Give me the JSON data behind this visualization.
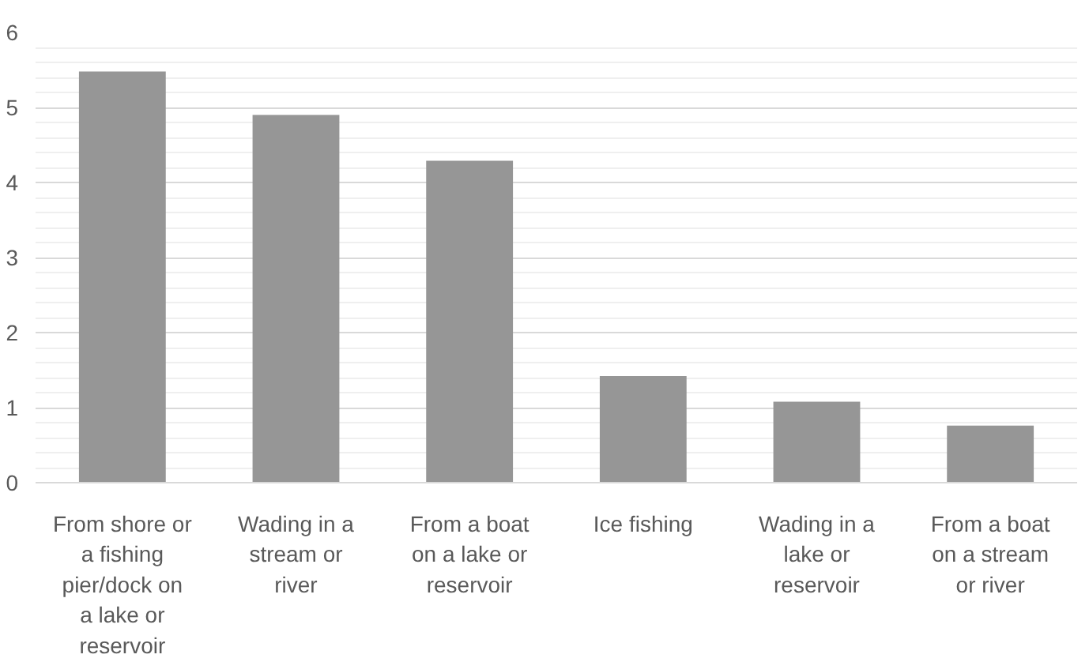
{
  "chart_data": {
    "type": "bar",
    "categories": [
      "From shore or a fishing pier/dock on a lake or reservoir",
      "Wading in a stream or river",
      "From a boat on a lake or reservoir",
      "Ice fishing",
      "Wading in a lake or reservoir",
      "From a boat on a stream or river"
    ],
    "values": [
      5.48,
      4.9,
      4.29,
      1.42,
      1.08,
      0.76
    ],
    "color": "#969696",
    "ylim": [
      0,
      6
    ],
    "yticks": [
      0,
      1,
      2,
      3,
      4,
      5,
      6
    ],
    "grid": "y"
  }
}
